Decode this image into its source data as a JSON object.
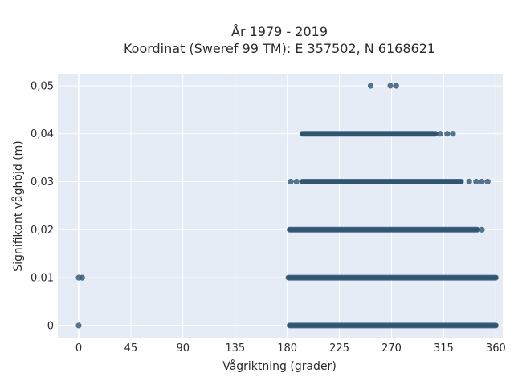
{
  "chart_data": {
    "type": "scatter",
    "title_line1": "År 1979 - 2019",
    "title_line2": "Koordinat (Sweref 99 TM): E 357502, N 6168621",
    "xlabel": "Vågriktning (grader)",
    "ylabel": "Signifikant våghöjd (m)",
    "xlim": [
      -18,
      366
    ],
    "ylim": [
      -0.0027,
      0.0525
    ],
    "x_ticks": [
      0,
      45,
      90,
      135,
      180,
      225,
      270,
      315,
      360
    ],
    "x_tick_labels": [
      "0",
      "45",
      "90",
      "135",
      "180",
      "225",
      "270",
      "315",
      "360"
    ],
    "y_ticks": [
      0,
      0.01,
      0.02,
      0.03,
      0.04,
      0.05
    ],
    "y_tick_labels": [
      "0",
      "0,01",
      "0,02",
      "0,03",
      "0,04",
      "0,05"
    ],
    "grid": true,
    "marker_color": "#2f5570",
    "plot_background": "#e5ecf6",
    "series": [
      {
        "points": [
          {
            "x": 0,
            "y": 0
          },
          {
            "x": 0,
            "y": 0.01
          },
          {
            "x": 3,
            "y": 0.01
          },
          {
            "x": 252,
            "y": 0.05
          },
          {
            "x": 269,
            "y": 0.05
          },
          {
            "x": 274,
            "y": 0.05
          },
          {
            "x": 312,
            "y": 0.04
          },
          {
            "x": 318,
            "y": 0.04
          },
          {
            "x": 323,
            "y": 0.04
          },
          {
            "x": 183,
            "y": 0.03
          },
          {
            "x": 188,
            "y": 0.03
          },
          {
            "x": 337,
            "y": 0.03
          },
          {
            "x": 343,
            "y": 0.03
          },
          {
            "x": 348,
            "y": 0.03
          },
          {
            "x": 353,
            "y": 0.03
          },
          {
            "x": 348,
            "y": 0.02
          }
        ],
        "bands": [
          {
            "y": 0.0,
            "x_from": 182,
            "x_to": 360
          },
          {
            "y": 0.01,
            "x_from": 181,
            "x_to": 360
          },
          {
            "y": 0.02,
            "x_from": 182,
            "x_to": 344
          },
          {
            "y": 0.03,
            "x_from": 193,
            "x_to": 330
          },
          {
            "y": 0.04,
            "x_from": 193,
            "x_to": 308
          }
        ]
      }
    ]
  }
}
